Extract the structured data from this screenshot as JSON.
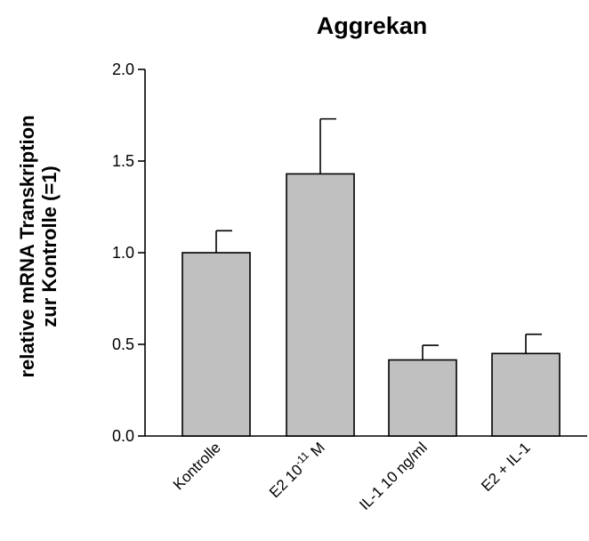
{
  "chart_data": {
    "type": "bar",
    "title": "Aggrekan",
    "ylabel": [
      "relative mRNA Transkription",
      "zur Kontrolle (=1)"
    ],
    "xlabel": "",
    "ylim": [
      0,
      2.0
    ],
    "yticks": [
      "0.0",
      "0.5",
      "1.0",
      "1.5",
      "2.0"
    ],
    "categories": [
      "Kontrolle",
      "E2 10-11 M",
      "IL-1 10 ng/ml",
      "E2 + IL-1"
    ],
    "category_labels": [
      {
        "base": "Kontrolle"
      },
      {
        "base": "E2 10",
        "sup": "-11",
        "rest": " M"
      },
      {
        "base": "IL-1 10 ng/ml"
      },
      {
        "base": "E2 + IL-1"
      }
    ],
    "values": [
      1.0,
      1.43,
      0.415,
      0.45
    ],
    "errors": [
      0.12,
      0.3,
      0.08,
      0.105
    ],
    "grid": false,
    "bar_color": "#c0c0c0"
  }
}
